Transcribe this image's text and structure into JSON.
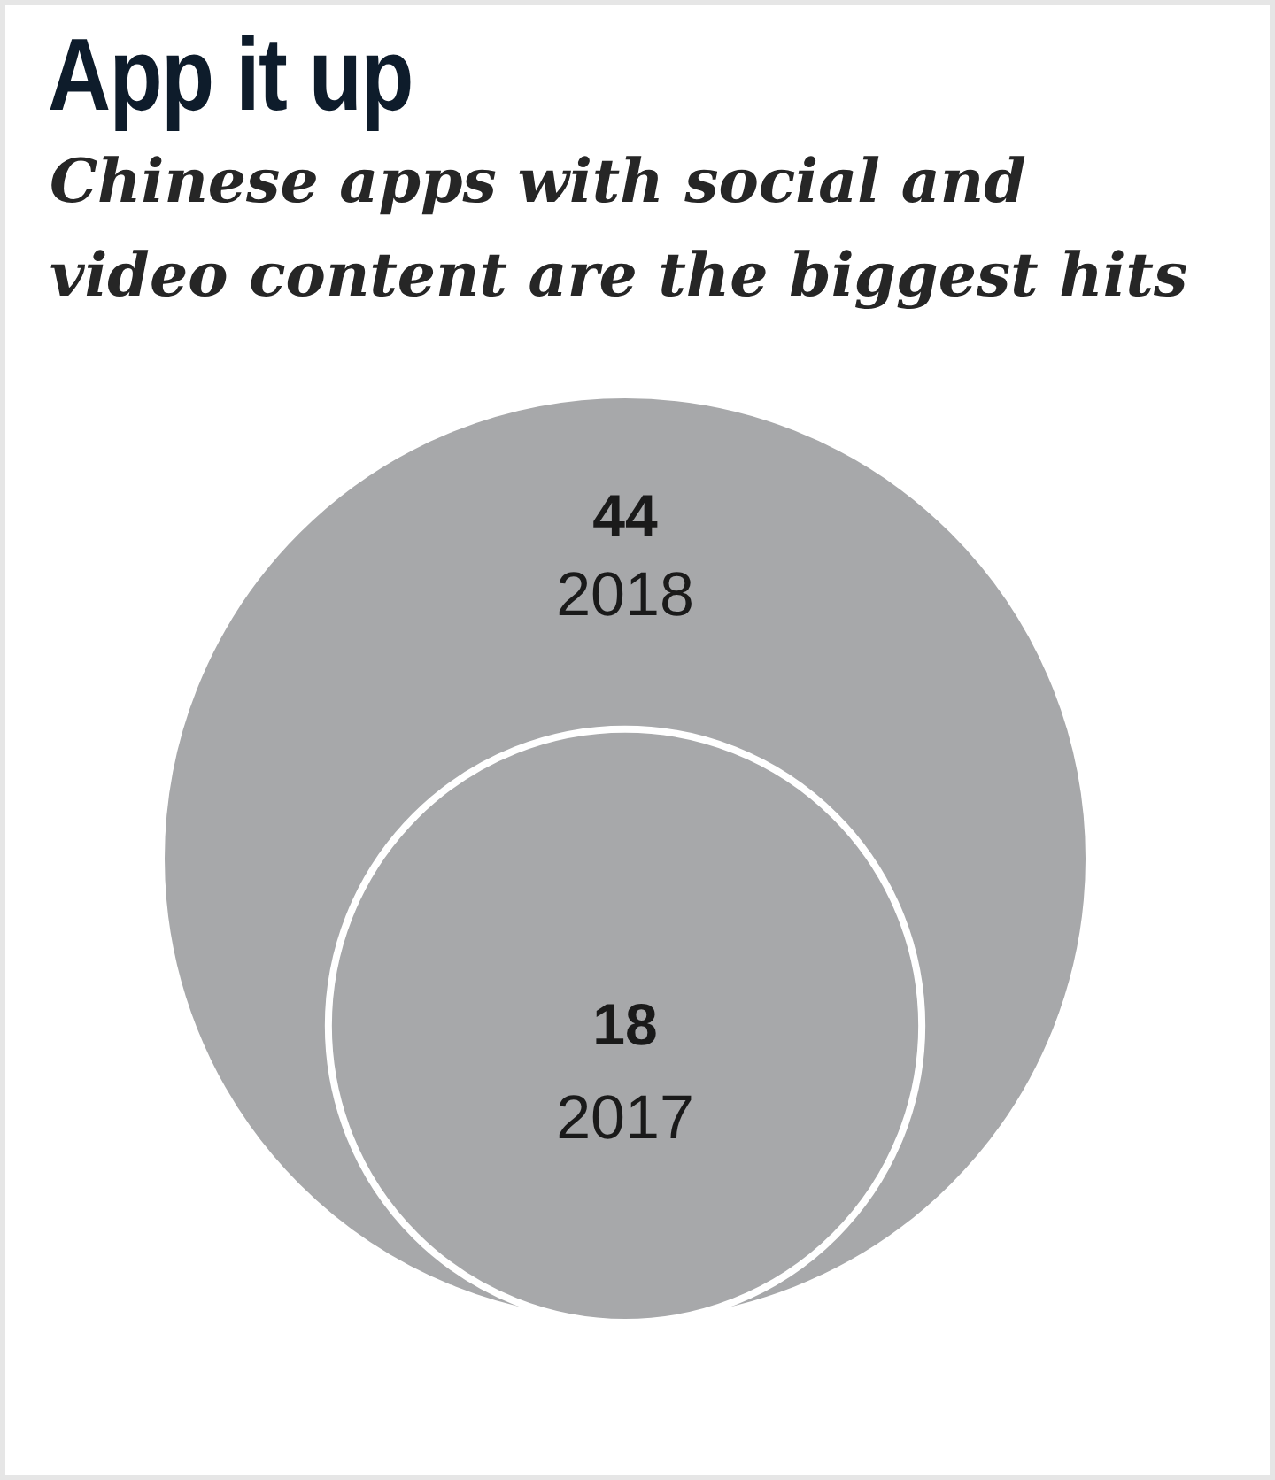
{
  "chart_data": {
    "type": "other",
    "title": "App it up",
    "subtitle": "Chinese apps with social and video content are the biggest hits",
    "categories": [
      "2018",
      "2017"
    ],
    "values": [
      44,
      18
    ],
    "colors": [
      "#a7a8aa",
      "#a7a8aa"
    ],
    "data_labels": true
  }
}
